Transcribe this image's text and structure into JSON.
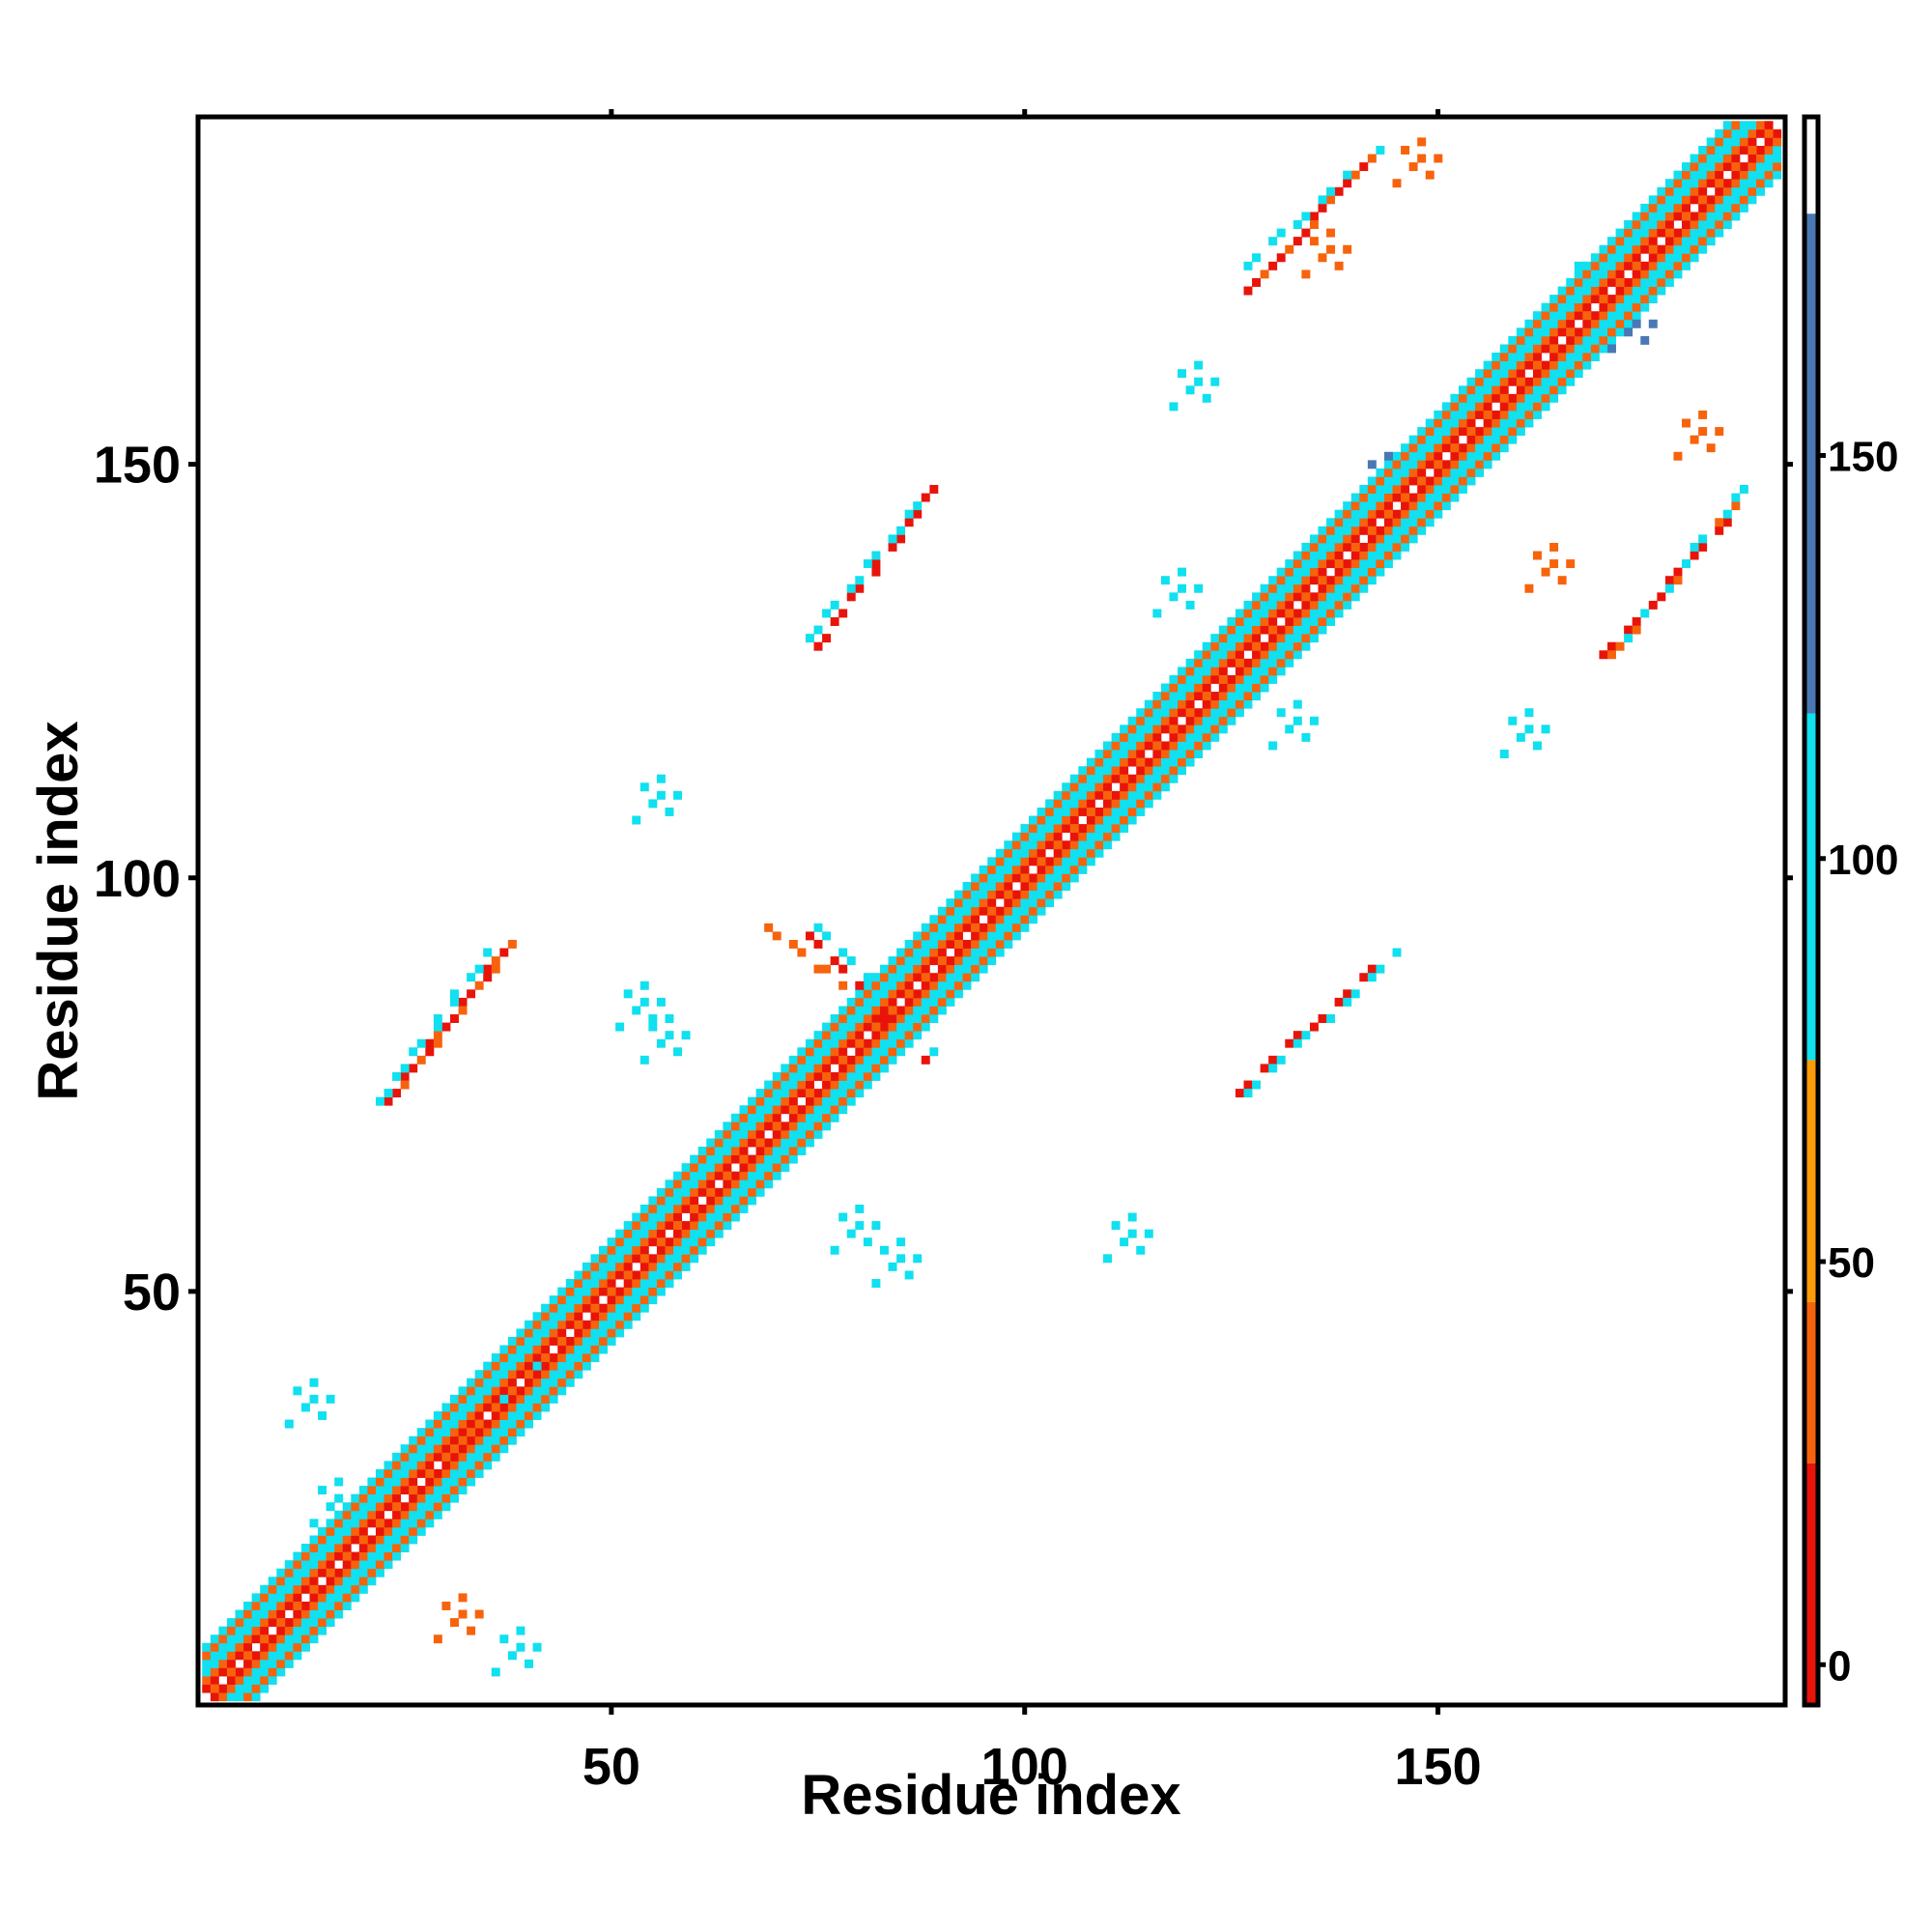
{
  "chart_data": {
    "type": "heatmap",
    "title": "",
    "xlabel": "Residue index",
    "ylabel": "Residue index",
    "xlim": [
      0,
      192
    ],
    "ylim": [
      0,
      192
    ],
    "x_ticks": [
      50,
      100,
      150
    ],
    "y_ticks": [
      50,
      100,
      150
    ],
    "grid": false,
    "symmetric": true,
    "colorbar": {
      "range": [
        -5,
        192
      ],
      "ticks": [
        0,
        50,
        100,
        150
      ],
      "bands": [
        {
          "from": -5,
          "to": 25,
          "color": "#e8140a"
        },
        {
          "from": 25,
          "to": 45,
          "color": "#f7630c"
        },
        {
          "from": 45,
          "to": 75,
          "color": "#fb9b06"
        },
        {
          "from": 75,
          "to": 118,
          "color": "#10e0ef"
        },
        {
          "from": 118,
          "to": 180,
          "color": "#4a78b4"
        },
        {
          "from": 180,
          "to": 192,
          "color": "#ffffff"
        }
      ]
    },
    "value_colors": {
      "red": "#e8140a",
      "orange": "#f7630c",
      "light_orange": "#fb9b06",
      "cyan": "#10e0ef",
      "steel_blue": "#4a78b4"
    },
    "diagonal_band": {
      "description": "contacts along main diagonal",
      "from": 1,
      "to": 191,
      "offsets": {
        "1": "red",
        "2": "orange",
        "3": "cyan",
        "4": "cyan",
        "5": "orange",
        "6": "cyan"
      }
    },
    "contact_segments": [
      {
        "from": [
          40,
          38
        ],
        "to": [
          23,
          22
        ],
        "color": "red"
      },
      {
        "from": [
          40,
          39
        ],
        "to": [
          23,
          24
        ],
        "color": "orange"
      },
      {
        "from": [
          41,
          41
        ],
        "to": [
          24,
          26
        ],
        "color": "cyan"
      },
      {
        "from": [
          74,
          93
        ],
        "to": [
          88,
          78
        ],
        "color": "red"
      },
      {
        "from": [
          75,
          94
        ],
        "to": [
          89,
          79
        ],
        "color": "cyan"
      },
      {
        "from": [
          69,
          94
        ],
        "to": [
          78,
          87
        ],
        "color": "orange"
      },
      {
        "from": [
          23,
          73
        ],
        "to": [
          37,
          91
        ],
        "color": "red"
      },
      {
        "from": [
          24,
          74
        ],
        "to": [
          38,
          92
        ],
        "color": "orange"
      },
      {
        "from": [
          22,
          73
        ],
        "to": [
          35,
          91
        ],
        "color": "cyan"
      },
      {
        "from": [
          75,
          128
        ],
        "to": [
          89,
          147
        ],
        "color": "red"
      },
      {
        "from": [
          74,
          129
        ],
        "to": [
          88,
          146
        ],
        "color": "cyan"
      },
      {
        "from": [
          126,
          74
        ],
        "to": [
          143,
          90
        ],
        "color": "red"
      },
      {
        "from": [
          127,
          74
        ],
        "to": [
          145,
          91
        ],
        "color": "cyan"
      },
      {
        "from": [
          170,
          127
        ],
        "to": [
          185,
          143
        ],
        "color": "red"
      },
      {
        "from": [
          171,
          127
        ],
        "to": [
          186,
          145
        ],
        "color": "orange"
      },
      {
        "from": [
          172,
          128
        ],
        "to": [
          187,
          147
        ],
        "color": "cyan"
      },
      {
        "from": [
          127,
          171
        ],
        "to": [
          141,
          186
        ],
        "color": "red"
      },
      {
        "from": [
          128,
          172
        ],
        "to": [
          142,
          187
        ],
        "color": "orange"
      },
      {
        "from": [
          127,
          174
        ],
        "to": [
          143,
          188
        ],
        "color": "cyan"
      }
    ],
    "contact_clusters": [
      {
        "center": [
          13,
          36
        ],
        "color": "cyan"
      },
      {
        "center": [
          16,
          24
        ],
        "color": "cyan"
      },
      {
        "center": [
          31,
          10
        ],
        "color": "orange"
      },
      {
        "center": [
          38,
          6
        ],
        "color": "cyan"
      },
      {
        "center": [
          53,
          84
        ],
        "color": "cyan"
      },
      {
        "center": [
          56,
          80
        ],
        "color": "cyan"
      },
      {
        "center": [
          70,
          69
        ],
        "color": "cyan"
      },
      {
        "center": [
          79,
          57
        ],
        "color": "cyan"
      },
      {
        "center": [
          84,
          53
        ],
        "color": "cyan"
      },
      {
        "center": [
          55,
          109
        ],
        "color": "cyan"
      },
      {
        "center": [
          112,
          56
        ],
        "color": "cyan"
      },
      {
        "center": [
          118,
          134
        ],
        "color": "cyan"
      },
      {
        "center": [
          132,
          118
        ],
        "color": "cyan"
      },
      {
        "center": [
          120,
          159
        ],
        "color": "cyan"
      },
      {
        "center": [
          160,
          117
        ],
        "color": "cyan"
      },
      {
        "center": [
          143,
          148
        ],
        "color": "steel_blue"
      },
      {
        "center": [
          155,
          156
        ],
        "color": "cyan"
      },
      {
        "center": [
          168,
          172
        ],
        "color": "cyan"
      },
      {
        "center": [
          173,
          166
        ],
        "color": "steel_blue"
      },
      {
        "center": [
          177,
          178
        ],
        "color": "cyan"
      },
      {
        "center": [
          147,
          186
        ],
        "color": "orange"
      },
      {
        "center": [
          136,
          175
        ],
        "color": "orange"
      },
      {
        "center": [
          181,
          153
        ],
        "color": "orange"
      },
      {
        "center": [
          163,
          137
        ],
        "color": "orange"
      }
    ]
  }
}
